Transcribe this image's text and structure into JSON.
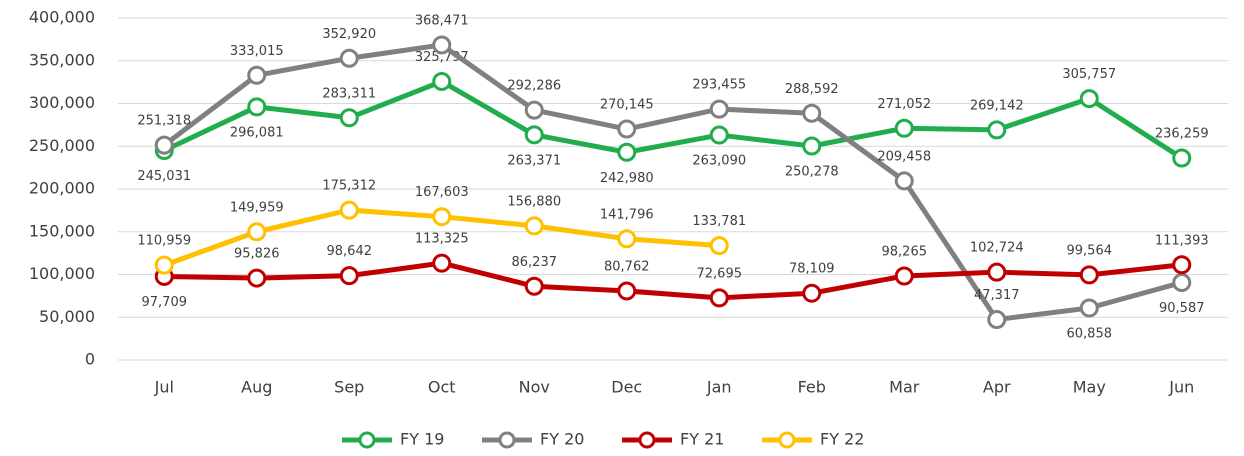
{
  "chart_data": {
    "type": "line",
    "categories": [
      "Jul",
      "Aug",
      "Sep",
      "Oct",
      "Nov",
      "Dec",
      "Jan",
      "Feb",
      "Mar",
      "Apr",
      "May",
      "Jun"
    ],
    "series": [
      {
        "name": "FY 19",
        "color": "#21ad4c",
        "values": [
          245031,
          296081,
          283311,
          325797,
          263371,
          242980,
          263090,
          250278,
          271052,
          269142,
          305757,
          236259
        ],
        "value_labels": [
          "245,031",
          "296,081",
          "283,311",
          "325,797",
          "263,371",
          "242,980",
          "263,090",
          "250,278",
          "271,052",
          "269,142",
          "305,757",
          "236,259"
        ]
      },
      {
        "name": "FY 20",
        "color": "#808080",
        "values": [
          251318,
          333015,
          352920,
          368471,
          292286,
          270145,
          293455,
          288592,
          209458,
          47317,
          60858,
          90587
        ],
        "value_labels": [
          "251,318",
          "333,015",
          "352,920",
          "368,471",
          "292,286",
          "270,145",
          "293,455",
          "288,592",
          "209,458",
          "47,317",
          "60,858",
          "90,587"
        ]
      },
      {
        "name": "FY 21",
        "color": "#c00000",
        "values": [
          97709,
          95826,
          98642,
          113325,
          86237,
          80762,
          72695,
          78109,
          98265,
          102724,
          99564,
          111393
        ],
        "value_labels": [
          "97,709",
          "95,826",
          "98,642",
          "113,325",
          "86,237",
          "80,762",
          "72,695",
          "78,109",
          "98,265",
          "102,724",
          "99,564",
          "111,393"
        ]
      },
      {
        "name": "FY 22",
        "color": "#ffc000",
        "values": [
          110959,
          149959,
          175312,
          167603,
          156880,
          141796,
          133781,
          null,
          null,
          null,
          null,
          null
        ],
        "value_labels": [
          "110,959",
          "149,959",
          "175,312",
          "167,603",
          "156,880",
          "141,796",
          "133,781",
          null,
          null,
          null,
          null,
          null
        ]
      }
    ],
    "ylim": [
      0,
      400000
    ],
    "yticks": [
      0,
      {
        "value": 50000,
        "label": "50,000"
      },
      {
        "value": 100000,
        "label": "100,000"
      },
      {
        "value": 150000,
        "label": "150,000"
      },
      {
        "value": 200000,
        "label": "200,000"
      },
      {
        "value": 250000,
        "label": "250,000"
      },
      {
        "value": 300000,
        "label": "300,000"
      },
      {
        "value": 350000,
        "label": "350,000"
      },
      {
        "value": 400000,
        "label": "400,000"
      }
    ],
    "grid": true,
    "legend": "bottom"
  }
}
